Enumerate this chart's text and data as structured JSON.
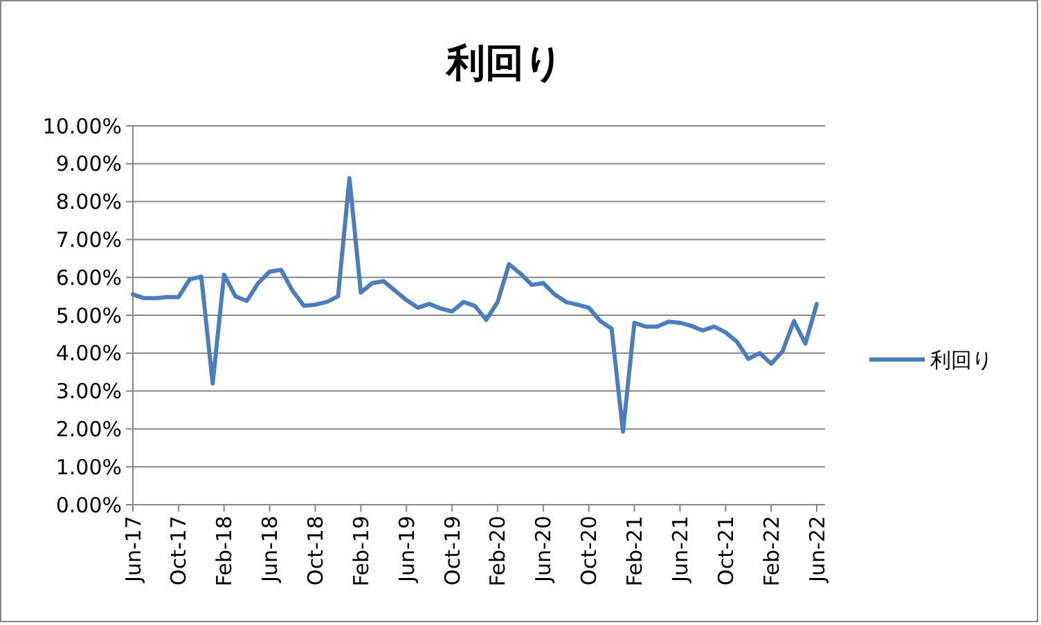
{
  "chart_data": {
    "type": "line",
    "title": "利回り",
    "categories": [
      "Jun-17",
      null,
      null,
      null,
      "Oct-17",
      null,
      null,
      null,
      "Feb-18",
      null,
      null,
      null,
      "Jun-18",
      null,
      null,
      null,
      "Oct-18",
      null,
      null,
      null,
      "Feb-19",
      null,
      null,
      null,
      "Jun-19",
      null,
      null,
      null,
      "Oct-19",
      null,
      null,
      null,
      "Feb-20",
      null,
      null,
      null,
      "Jun-20",
      null,
      null,
      null,
      "Oct-20",
      null,
      null,
      null,
      "Feb-21",
      null,
      null,
      null,
      "Jun-21",
      null,
      null,
      null,
      "Oct-21",
      null,
      null,
      null,
      "Feb-22",
      null,
      null,
      null,
      "Jun-22"
    ],
    "series": [
      {
        "name": "利回り",
        "color": "#4a7ebb",
        "values": [
          5.55,
          5.45,
          5.45,
          5.48,
          5.48,
          5.95,
          6.02,
          3.2,
          6.07,
          5.5,
          5.38,
          5.85,
          6.15,
          6.2,
          5.65,
          5.25,
          5.28,
          5.35,
          5.5,
          8.62,
          5.6,
          5.85,
          5.9,
          5.65,
          5.4,
          5.2,
          5.3,
          5.18,
          5.1,
          5.35,
          5.25,
          4.88,
          5.35,
          6.35,
          6.1,
          5.8,
          5.85,
          5.55,
          5.35,
          5.28,
          5.2,
          4.85,
          4.65,
          1.93,
          4.8,
          4.7,
          4.7,
          4.83,
          4.8,
          4.72,
          4.6,
          4.7,
          4.55,
          4.3,
          3.85,
          4.0,
          3.72,
          4.05,
          4.85,
          4.25,
          5.3
        ]
      }
    ],
    "ylim": [
      0,
      10
    ],
    "yticks": [
      {
        "value": 0,
        "label": "0.00%"
      },
      {
        "value": 1,
        "label": "1.00%"
      },
      {
        "value": 2,
        "label": "2.00%"
      },
      {
        "value": 3,
        "label": "3.00%"
      },
      {
        "value": 4,
        "label": "4.00%"
      },
      {
        "value": 5,
        "label": "5.00%"
      },
      {
        "value": 6,
        "label": "6.00%"
      },
      {
        "value": 7,
        "label": "7.00%"
      },
      {
        "value": 8,
        "label": "8.00%"
      },
      {
        "value": 9,
        "label": "9.00%"
      },
      {
        "value": 10,
        "label": "10.00%"
      }
    ],
    "grid": "y",
    "legend": "right",
    "marker": "none",
    "line_style": "solid"
  }
}
